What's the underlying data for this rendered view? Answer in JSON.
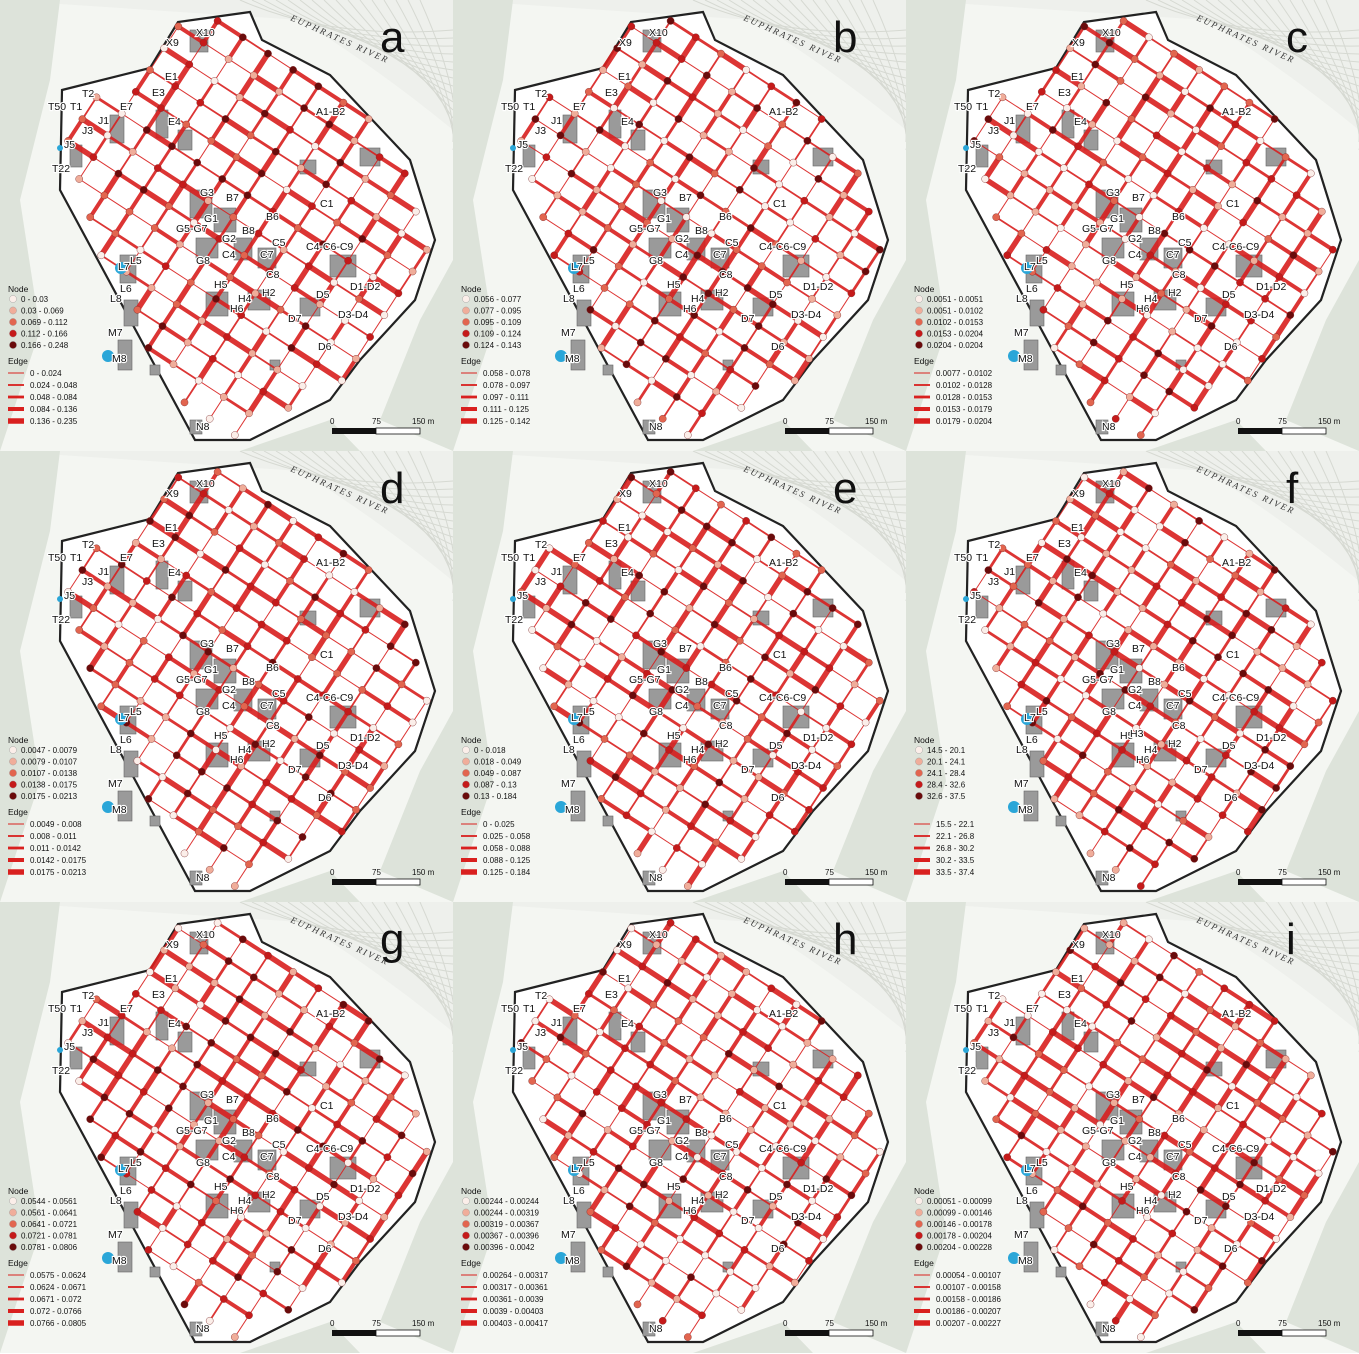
{
  "figure": {
    "river_label": "EUPHRATES RIVER",
    "scale": {
      "ticks": [
        "0",
        "75",
        "150 m"
      ]
    },
    "place_labels": [
      "X10",
      "X9",
      "E1",
      "E3",
      "E7",
      "E4",
      "T2",
      "T50",
      "T1",
      "J1",
      "J3",
      "J5",
      "T22",
      "A1-B2",
      "G3",
      "B7",
      "G1",
      "B6",
      "C1",
      "G5-G7",
      "G2",
      "B8",
      "C5",
      "C4-C6-C9",
      "G8",
      "C4",
      "C7",
      "C8",
      "L7",
      "L5",
      "L6",
      "L8",
      "H5",
      "H4",
      "H2",
      "D5",
      "D1-D2",
      "H6",
      "D7",
      "D3-D4",
      "M7",
      "D6",
      "M8",
      "N8",
      "H3"
    ],
    "panels": [
      {
        "letter": "a",
        "node_title": "Node",
        "node_ranges": [
          "0 - 0.03",
          "0.03 - 0.069",
          "0.069 - 0.112",
          "0.112 - 0.166",
          "0.166 - 0.248"
        ],
        "edge_title": "Edge",
        "edge_ranges": [
          "0 - 0.024",
          "0.024 - 0.048",
          "0.048 - 0.084",
          "0.084 - 0.136",
          "0.136 - 0.235"
        ]
      },
      {
        "letter": "b",
        "node_title": "Node",
        "node_ranges": [
          "0.056 - 0.077",
          "0.077 - 0.095",
          "0.095 - 0.109",
          "0.109 - 0.124",
          "0.124 - 0.143"
        ],
        "edge_title": "Edge",
        "edge_ranges": [
          "0.058 - 0.078",
          "0.078 - 0.097",
          "0.097 - 0.111",
          "0.111 - 0.125",
          "0.125 - 0.142"
        ]
      },
      {
        "letter": "c",
        "node_title": "Node",
        "node_ranges": [
          "0.0051 - 0.0051",
          "0.0051 - 0.0102",
          "0.0102 - 0.0153",
          "0.0153 - 0.0204",
          "0.0204 - 0.0204"
        ],
        "edge_title": "Edge",
        "edge_ranges": [
          "0.0077 - 0.0102",
          "0.0102 - 0.0128",
          "0.0128 - 0.0153",
          "0.0153 - 0.0179",
          "0.0179 - 0.0204"
        ]
      },
      {
        "letter": "d",
        "node_title": "Node",
        "node_ranges": [
          "0.0047 - 0.0079",
          "0.0079 - 0.0107",
          "0.0107 - 0.0138",
          "0.0138 - 0.0175",
          "0.0175 - 0.0213"
        ],
        "edge_title": "Edge",
        "edge_ranges": [
          "0.0049 - 0.008",
          "0.008 - 0.011",
          "0.011 - 0.0142",
          "0.0142 - 0.0175",
          "0.0175 - 0.0213"
        ]
      },
      {
        "letter": "e",
        "node_title": "Node",
        "node_ranges": [
          "0 - 0.018",
          "0.018 - 0.049",
          "0.049 - 0.087",
          "0.087 - 0.13",
          "0.13 - 0.184"
        ],
        "edge_title": "Edge",
        "edge_ranges": [
          "0 - 0.025",
          "0.025 - 0.058",
          "0.058 - 0.088",
          "0.088 - 0.125",
          "0.125 - 0.184"
        ]
      },
      {
        "letter": "f",
        "node_title": "Node",
        "node_ranges": [
          "14.5 - 20.1",
          "20.1 - 24.1",
          "24.1 - 28.4",
          "28.4 - 32.6",
          "32.6 - 37.5"
        ],
        "edge_title": "",
        "edge_ranges": [
          "15.5 - 22.1",
          "22.1 - 26.8",
          "26.8 - 30.2",
          "30.2 - 33.5",
          "33.5 - 37.4"
        ]
      },
      {
        "letter": "g",
        "node_title": "Node",
        "node_ranges": [
          "0.0544 - 0.0561",
          "0.0561 - 0.0641",
          "0.0641 - 0.0721",
          "0.0721 - 0.0781",
          "0.0781 - 0.0806"
        ],
        "edge_title": "Edge",
        "edge_ranges": [
          "0.0575 - 0.0624",
          "0.0624 - 0.0671",
          "0.0671 - 0.072",
          "0.072 - 0.0766",
          "0.0766 - 0.0805"
        ]
      },
      {
        "letter": "h",
        "node_title": "Node",
        "node_ranges": [
          "0.00244 - 0.00244",
          "0.00244 - 0.00319",
          "0.00319 - 0.00367",
          "0.00367 - 0.00396",
          "0.00396 - 0.0042"
        ],
        "edge_title": "Edge",
        "edge_ranges": [
          "0.00264 - 0.00317",
          "0.00317 - 0.00361",
          "0.00361 - 0.0039",
          "0.0039 - 0.00403",
          "0.00403 - 0.00417"
        ]
      },
      {
        "letter": "i",
        "node_title": "Node",
        "node_ranges": [
          "0.00051 - 0.00099",
          "0.00099 - 0.00146",
          "0.00146 - 0.00178",
          "0.00178 - 0.00204",
          "0.00204 - 0.00228"
        ],
        "edge_title": "Edge",
        "edge_ranges": [
          "0.00054 - 0.00107",
          "0.00107 - 0.00158",
          "0.00158 - 0.00186",
          "0.00186 - 0.00207",
          "0.00207 - 0.00227"
        ]
      }
    ],
    "colors": {
      "node_classes": [
        "#fbeee9",
        "#f0ad9a",
        "#e2654f",
        "#c51a1a",
        "#6a0b0b"
      ],
      "edge": "#d9201f",
      "building": "#9a9a9a",
      "terrain": "#dde3da",
      "water_marker": "#2aa6d8"
    }
  }
}
